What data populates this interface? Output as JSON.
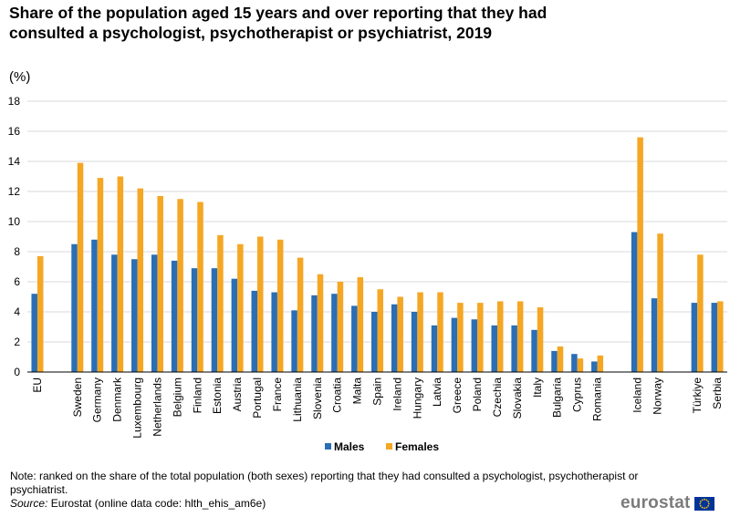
{
  "title": "Share of the population aged 15 years and over reporting that they had consulted a psychologist, psychotherapist or psychiatrist, 2019",
  "unit_label": "(%)",
  "colors": {
    "males": "#2a6eb5",
    "females": "#f5a623",
    "grid": "#d9d9d9",
    "axis": "#000000"
  },
  "chart_data": {
    "type": "bar",
    "title": "Share of the population aged 15 years and over reporting that they had consulted a psychologist, psychotherapist or psychiatrist, 2019",
    "ylabel": "(%)",
    "xlabel": "",
    "ylim": [
      0,
      18
    ],
    "yticks": [
      0,
      2,
      4,
      6,
      8,
      10,
      12,
      14,
      16,
      18
    ],
    "grid": true,
    "legend_position": "bottom-center",
    "categories": [
      "EU",
      "",
      "Sweden",
      "Germany",
      "Denmark",
      "Luxembourg",
      "Netherlands",
      "Belgium",
      "Finland",
      "Estonia",
      "Austria",
      "Portugal",
      "France",
      "Lithuania",
      "Slovenia",
      "Croatia",
      "Malta",
      "Spain",
      "Ireland",
      "Hungary",
      "Latvia",
      "Greece",
      "Poland",
      "Czechia",
      "Slovakia",
      "Italy",
      "Bulgaria",
      "Cyprus",
      "Romania",
      "",
      "Iceland",
      "Norway",
      "",
      "Türkiye",
      "Serbia"
    ],
    "series": [
      {
        "name": "Males",
        "values": [
          5.2,
          null,
          8.5,
          8.8,
          7.8,
          7.5,
          7.8,
          7.4,
          6.9,
          6.9,
          6.2,
          5.4,
          5.3,
          4.1,
          5.1,
          5.2,
          4.4,
          4.0,
          4.5,
          4.0,
          3.1,
          3.6,
          3.5,
          3.1,
          3.1,
          2.8,
          1.4,
          1.2,
          0.7,
          null,
          9.3,
          4.9,
          null,
          4.6,
          4.6
        ]
      },
      {
        "name": "Females",
        "values": [
          7.7,
          null,
          13.9,
          12.9,
          13.0,
          12.2,
          11.7,
          11.5,
          11.3,
          9.1,
          8.5,
          9.0,
          8.8,
          7.6,
          6.5,
          6.0,
          6.3,
          5.5,
          5.0,
          5.3,
          5.3,
          4.6,
          4.6,
          4.7,
          4.7,
          4.3,
          1.7,
          0.9,
          1.1,
          null,
          15.6,
          9.2,
          null,
          7.8,
          4.7
        ]
      }
    ]
  },
  "note": "Note: ranked on the share of the total population (both sexes) reporting that they had consulted a psychologist, psychotherapist or psychiatrist.",
  "source": {
    "label": "Source:",
    "text": "Eurostat (online data code: hlth_ehis_am6e)"
  },
  "logo_text": "eurostat"
}
